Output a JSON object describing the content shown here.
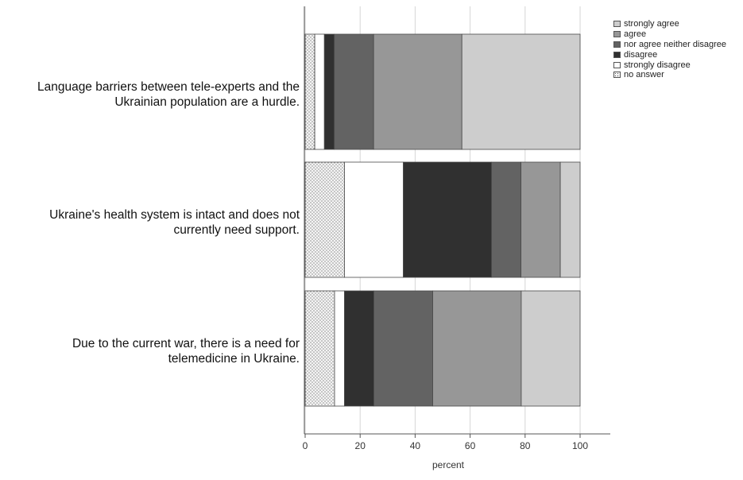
{
  "chart_data": {
    "type": "bar",
    "orientation": "horizontal",
    "stacked": true,
    "categories": [
      "Language barriers between tele-experts and the\nUkrainian population are a hurdle.",
      "Ukraine's health system is intact and does not\ncurrently need support.",
      "Due to the current war, there is a need for\ntelemedicine in Ukraine."
    ],
    "series": [
      {
        "name": "no answer",
        "color": "#f4f4f4",
        "pattern": "dots",
        "values": [
          3.5,
          14.3,
          10.7
        ]
      },
      {
        "name": "strongly disagree",
        "color": "#ffffff",
        "values": [
          3.5,
          21.4,
          3.6
        ]
      },
      {
        "name": "disagree",
        "color": "#303030",
        "values": [
          3.6,
          32.1,
          10.7
        ]
      },
      {
        "name": "nor agree neither disagree",
        "color": "#636363",
        "values": [
          14.3,
          10.7,
          21.4
        ]
      },
      {
        "name": "agree",
        "color": "#979797",
        "values": [
          32.1,
          14.3,
          32.2
        ]
      },
      {
        "name": "strongly agree",
        "color": "#cdcdcd",
        "values": [
          43.0,
          7.2,
          21.4
        ]
      }
    ],
    "legend_order": [
      "strongly agree",
      "agree",
      "nor agree neither disagree",
      "disagree",
      "strongly disagree",
      "no answer"
    ],
    "legend_position": "top-right",
    "xlabel": "percent",
    "xlim": [
      0,
      100
    ],
    "xticks": [
      "0",
      "20",
      "40",
      "60",
      "80",
      "100"
    ],
    "grid": "vertical"
  }
}
